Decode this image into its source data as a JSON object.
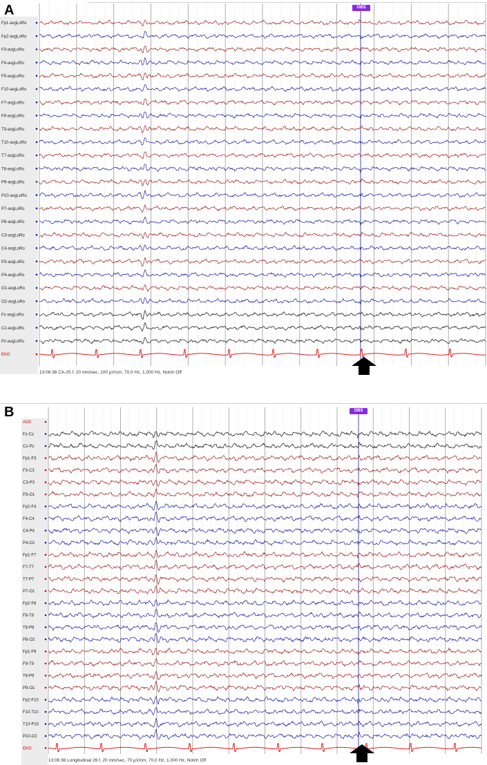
{
  "colors": {
    "red": "#a11a1a",
    "blue": "#1a1aa0",
    "black": "#111111",
    "ekg": "#e00000",
    "marker": "#8a2be2"
  },
  "panels": [
    {
      "letter": "A",
      "marker_label": "OBS",
      "status": "13:06:38 CA-25 f, 20 mm/sec, 100 µV/cm, 70,0 Hz, 1,000 Hz, Notch Off",
      "channels": [
        {
          "label": "Fp1-avgLoRo",
          "color": "red"
        },
        {
          "label": "Fp2-avgLoRo",
          "color": "blue"
        },
        {
          "label": "F3-avgLoRo",
          "color": "red"
        },
        {
          "label": "F4-avgLoRo",
          "color": "blue"
        },
        {
          "label": "F9-avgLoRo",
          "color": "red"
        },
        {
          "label": "F10-avgLoRo",
          "color": "blue"
        },
        {
          "label": "F7-avgLoRo",
          "color": "red"
        },
        {
          "label": "F8-avgLoRo",
          "color": "blue"
        },
        {
          "label": "T9-avgLoRo",
          "color": "red"
        },
        {
          "label": "T10-avgLoRo",
          "color": "blue"
        },
        {
          "label": "T7-avgLoRo",
          "color": "red"
        },
        {
          "label": "T8-avgLoRo",
          "color": "blue"
        },
        {
          "label": "P9-avgLoRo",
          "color": "red"
        },
        {
          "label": "P10-avgLoRo",
          "color": "blue"
        },
        {
          "label": "P7-avgLoRo",
          "color": "red"
        },
        {
          "label": "P8-avgLoRo",
          "color": "blue"
        },
        {
          "label": "C3-avgLoRo",
          "color": "red"
        },
        {
          "label": "C4-avgLoRo",
          "color": "blue"
        },
        {
          "label": "P3-avgLoRo",
          "color": "red"
        },
        {
          "label": "P4-avgLoRo",
          "color": "blue"
        },
        {
          "label": "O1-avgLoRo",
          "color": "red"
        },
        {
          "label": "O2-avgLoRo",
          "color": "blue"
        },
        {
          "label": "Fz-avgLoRo",
          "color": "black"
        },
        {
          "label": "Cz-avgLoRo",
          "color": "black"
        },
        {
          "label": "Pz-avgLoRo",
          "color": "black"
        },
        {
          "label": "EKG",
          "color": "ekg",
          "ekg": true
        }
      ]
    },
    {
      "letter": "B",
      "marker_label": "OBS",
      "status": "13:06:38 Longitudinal 26 f, 20 mm/sec, 70 µV/cm, 70,0 Hz, 1,000 Hz, Notch Off",
      "channels": [
        {
          "label": "AO0",
          "color": "red",
          "empty": true
        },
        {
          "label": "Fz-Cz",
          "color": "black"
        },
        {
          "label": "Cz-Pz",
          "color": "black"
        },
        {
          "label": "Fp1-F3",
          "color": "red"
        },
        {
          "label": "F3-C3",
          "color": "red"
        },
        {
          "label": "C3-P3",
          "color": "red"
        },
        {
          "label": "P3-O1",
          "color": "red"
        },
        {
          "label": "Fp2-F4",
          "color": "blue"
        },
        {
          "label": "F4-C4",
          "color": "blue"
        },
        {
          "label": "C4-P4",
          "color": "blue"
        },
        {
          "label": "P4-O2",
          "color": "blue"
        },
        {
          "label": "Fp1-F7",
          "color": "red"
        },
        {
          "label": "F7-T7",
          "color": "red"
        },
        {
          "label": "T7-P7",
          "color": "red"
        },
        {
          "label": "P7-O1",
          "color": "red"
        },
        {
          "label": "Fp2-F8",
          "color": "blue"
        },
        {
          "label": "F8-T8",
          "color": "blue"
        },
        {
          "label": "T8-P8",
          "color": "blue"
        },
        {
          "label": "P8-O2",
          "color": "blue"
        },
        {
          "label": "Fp1-F9",
          "color": "red"
        },
        {
          "label": "F9-T9",
          "color": "red"
        },
        {
          "label": "T9-P9",
          "color": "red"
        },
        {
          "label": "P9-O1",
          "color": "red"
        },
        {
          "label": "Fp2-F10",
          "color": "blue"
        },
        {
          "label": "F10-T10",
          "color": "blue"
        },
        {
          "label": "T10-P10",
          "color": "blue"
        },
        {
          "label": "P10-O2",
          "color": "blue"
        },
        {
          "label": "EKG",
          "color": "ekg",
          "ekg": true
        }
      ]
    }
  ]
}
